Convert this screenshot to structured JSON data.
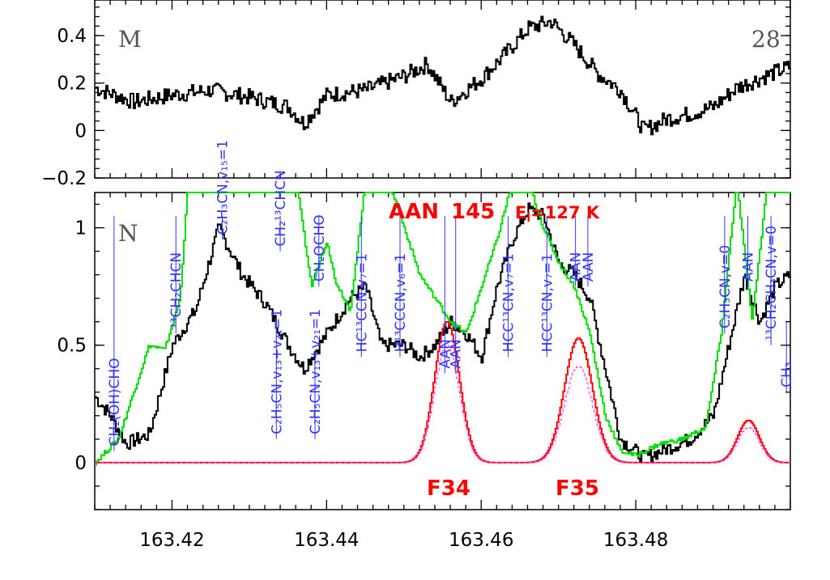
{
  "chart_data": [
    {
      "type": "line",
      "panel_tag": "M",
      "panel_number": "28",
      "xlim": [
        163.41,
        163.5
      ],
      "ylim": [
        -0.2,
        0.55
      ],
      "yticks": [
        "0.4",
        "0.2",
        "0",
        "−0.2"
      ],
      "ytick_values": [
        0.4,
        0.2,
        0,
        -0.2
      ],
      "series": [
        {
          "color": "#000000",
          "step": true,
          "x": [
            163.41,
            163.415,
            163.42,
            163.425,
            163.43,
            163.435,
            163.437,
            163.44,
            163.445,
            163.45,
            163.453,
            163.456,
            163.46,
            163.463,
            163.466,
            163.469,
            163.472,
            163.475,
            163.478,
            163.481,
            163.484,
            163.487,
            163.49,
            163.493,
            163.496,
            163.5
          ],
          "y": [
            0.18,
            0.12,
            0.15,
            0.17,
            0.14,
            0.1,
            0.03,
            0.15,
            0.17,
            0.23,
            0.28,
            0.12,
            0.22,
            0.32,
            0.43,
            0.46,
            0.36,
            0.24,
            0.17,
            0.0,
            0.05,
            0.07,
            0.1,
            0.18,
            0.22,
            0.27
          ]
        }
      ]
    },
    {
      "type": "line",
      "panel_tag": "N",
      "xlim": [
        163.41,
        163.5
      ],
      "ylim": [
        -0.2,
        1.15
      ],
      "yticks": [
        "1",
        "0.5",
        "0"
      ],
      "ytick_values": [
        1,
        0.5,
        0
      ],
      "xticks": [
        "163.42",
        "163.44",
        "163.46",
        "163.48"
      ],
      "xtick_values": [
        163.42,
        163.44,
        163.46,
        163.48
      ],
      "series": [
        {
          "color": "#000000",
          "step": true,
          "x": [
            163.41,
            163.412,
            163.414,
            163.417,
            163.42,
            163.423,
            163.426,
            163.429,
            163.432,
            163.435,
            163.437,
            163.44,
            163.443,
            163.445,
            163.447,
            163.45,
            163.452,
            163.454,
            163.456,
            163.458,
            163.46,
            163.462,
            163.464,
            163.466,
            163.468,
            163.47,
            163.472,
            163.474,
            163.476,
            163.478,
            163.481,
            163.484,
            163.487,
            163.49,
            163.492,
            163.494,
            163.496,
            163.498,
            163.5
          ],
          "y": [
            0.28,
            0.2,
            0.08,
            0.12,
            0.5,
            0.65,
            1.0,
            0.8,
            0.68,
            0.5,
            0.4,
            0.55,
            0.7,
            0.75,
            0.5,
            0.5,
            0.45,
            0.5,
            0.6,
            0.55,
            0.45,
            0.75,
            0.95,
            1.08,
            1.05,
            0.85,
            0.8,
            0.7,
            0.4,
            0.1,
            0.02,
            0.06,
            0.1,
            0.2,
            0.5,
            0.8,
            0.6,
            0.75,
            0.8
          ]
        },
        {
          "color": "#00dd00",
          "step": true,
          "x": [
            163.41,
            163.413,
            163.415,
            163.417,
            163.419,
            163.421,
            163.422,
            163.424,
            163.426,
            163.428,
            163.43,
            163.432,
            163.434,
            163.436,
            163.438,
            163.44,
            163.441,
            163.443,
            163.445,
            163.448,
            163.45,
            163.452,
            163.454,
            163.456,
            163.458,
            163.46,
            163.462,
            163.464,
            163.466,
            163.468,
            163.47,
            163.472,
            163.474,
            163.476,
            163.478,
            163.48,
            163.483,
            163.486,
            163.489,
            163.491,
            163.493,
            163.495,
            163.497,
            163.5
          ],
          "y": [
            0.0,
            0.1,
            0.3,
            0.5,
            0.48,
            0.7,
            1.2,
            1.2,
            1.2,
            1.2,
            1.2,
            1.2,
            1.2,
            1.2,
            0.75,
            0.95,
            0.78,
            0.65,
            1.2,
            1.2,
            1.0,
            0.8,
            0.7,
            0.6,
            0.55,
            0.75,
            0.95,
            1.2,
            1.2,
            1.0,
            0.85,
            0.75,
            0.55,
            0.2,
            0.05,
            0.03,
            0.08,
            0.1,
            0.15,
            0.55,
            1.2,
            0.6,
            1.2,
            1.2
          ]
        },
        {
          "color": "#ff0000",
          "step": true,
          "gaussians": [
            {
              "center": 163.4555,
              "amp": 0.6,
              "sigma": 0.0016
            },
            {
              "center": 163.4725,
              "amp": 0.53,
              "sigma": 0.0018
            },
            {
              "center": 163.4945,
              "amp": 0.18,
              "sigma": 0.0014
            }
          ]
        },
        {
          "color": "#ff44ff",
          "dashed": true,
          "step": true,
          "gaussians": [
            {
              "center": 163.4555,
              "amp": 0.5,
              "sigma": 0.0016
            },
            {
              "center": 163.4725,
              "amp": 0.41,
              "sigma": 0.0018
            },
            {
              "center": 163.4945,
              "amp": 0.15,
              "sigma": 0.0014
            }
          ]
        }
      ],
      "line_markers": [
        {
          "x": 163.4125,
          "y_bottom": 0.05,
          "y_top": 1.05,
          "label": "CH₂(OH)CHO"
        },
        {
          "x": 163.4205,
          "y_bottom": 0.55,
          "y_top": 1.05,
          "label": "¹³CH₂CHCN"
        },
        {
          "x": 163.4265,
          "y_bottom": 0.95,
          "y_top": 1.05,
          "label": "C₂H₃CN,v₁₅=1"
        },
        {
          "x": 163.4335,
          "y_bottom": 0.1,
          "y_top": 0.6,
          "label": "C₂H₅CN,v₁₃+v₂₁=1"
        },
        {
          "x": 163.434,
          "y_bottom": 0.9,
          "y_top": 1.05,
          "label": "CH₂¹³CHCN"
        },
        {
          "x": 163.4385,
          "y_bottom": 0.1,
          "y_top": 0.45,
          "label": "C₂H₅CN,v₁₃+v₂₁=1"
        },
        {
          "x": 163.439,
          "y_bottom": 0.75,
          "y_top": 1.05,
          "label": "CH₂OCHO"
        },
        {
          "x": 163.4445,
          "y_bottom": 0.45,
          "y_top": 1.05,
          "label": "HC¹³CCN,v₇=1"
        },
        {
          "x": 163.4495,
          "y_bottom": 0.45,
          "y_top": 1.05,
          "label": "H¹³CCCN,v₆=1"
        },
        {
          "x": 163.4553,
          "y_bottom": 0.38,
          "y_top": 1.05,
          "label": "AAN"
        },
        {
          "x": 163.4567,
          "y_bottom": 0.38,
          "y_top": 1.05,
          "label": "AAN"
        },
        {
          "x": 163.4635,
          "y_bottom": 0.45,
          "y_top": 1.05,
          "label": "HCC¹³CN,v₇=1"
        },
        {
          "x": 163.4685,
          "y_bottom": 0.45,
          "y_top": 1.05,
          "label": "HCC¹³CN,v₇=1"
        },
        {
          "x": 163.4722,
          "y_bottom": 0.75,
          "y_top": 1.05,
          "label": "AAN"
        },
        {
          "x": 163.4738,
          "y_bottom": 0.75,
          "y_top": 1.05,
          "label": "AAN"
        },
        {
          "x": 163.4915,
          "y_bottom": 0.55,
          "y_top": 1.05,
          "label": "C₂H₃CN,v=0"
        },
        {
          "x": 163.4945,
          "y_bottom": 0.75,
          "y_top": 1.05,
          "label": "AAN"
        },
        {
          "x": 163.4975,
          "y_bottom": 0.5,
          "y_top": 1.05,
          "label": "¹³CH₂CH₃CN,v=0"
        },
        {
          "x": 163.4995,
          "y_bottom": 0.3,
          "y_top": 0.6,
          "label": "CH₃"
        }
      ],
      "annotations": {
        "species": "AAN",
        "transitions": "145",
        "energy": "E",
        "energy_sub": "l",
        "energy_value": "=127 K",
        "line_labels": [
          "F34",
          "F35"
        ]
      }
    }
  ]
}
